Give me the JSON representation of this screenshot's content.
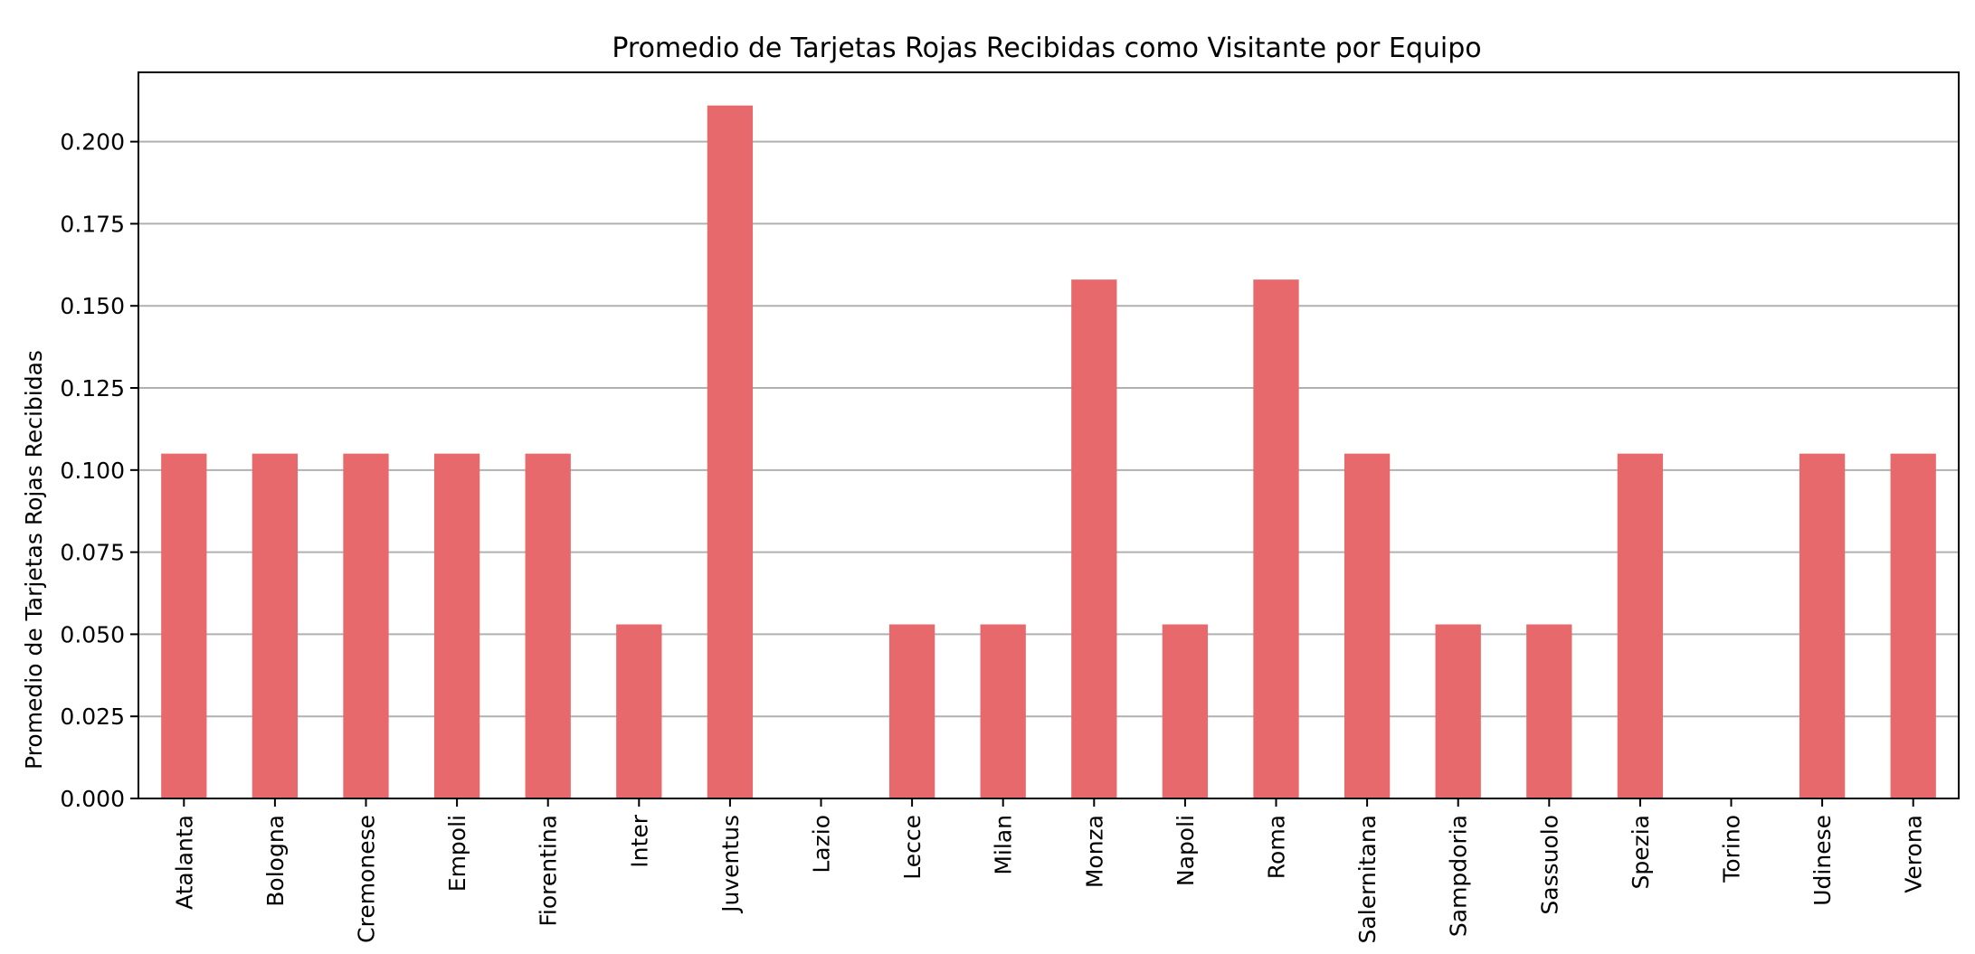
{
  "chart_data": {
    "type": "bar",
    "title": "Promedio de Tarjetas Rojas Recibidas como Visitante por Equipo",
    "xlabel": "",
    "ylabel": "Promedio de Tarjetas Rojas Recibidas",
    "categories": [
      "Atalanta",
      "Bologna",
      "Cremonese",
      "Empoli",
      "Fiorentina",
      "Inter",
      "Juventus",
      "Lazio",
      "Lecce",
      "Milan",
      "Monza",
      "Napoli",
      "Roma",
      "Salernitana",
      "Sampdoria",
      "Sassuolo",
      "Spezia",
      "Torino",
      "Udinese",
      "Verona"
    ],
    "values": [
      0.105,
      0.105,
      0.105,
      0.105,
      0.105,
      0.053,
      0.211,
      0.0,
      0.053,
      0.053,
      0.158,
      0.053,
      0.158,
      0.105,
      0.053,
      0.053,
      0.105,
      0.0,
      0.105,
      0.105
    ],
    "ylim": [
      0,
      0.2211
    ],
    "yticks": [
      "0.000",
      "0.025",
      "0.050",
      "0.075",
      "0.100",
      "0.125",
      "0.150",
      "0.175",
      "0.200"
    ],
    "grid": "horizontal",
    "bar_color": "#e8696b"
  }
}
